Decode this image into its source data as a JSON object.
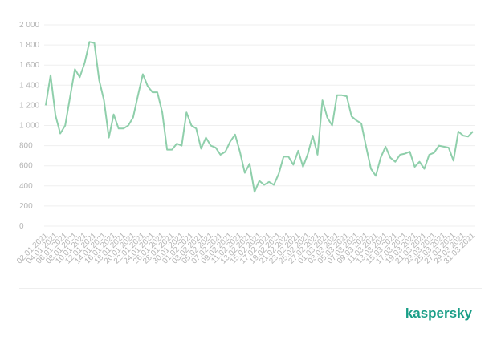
{
  "chart_data": {
    "type": "line",
    "categories": [
      "02.01.2021",
      null,
      "04.01.2021",
      null,
      "06.01.2021",
      null,
      "08.01.2021",
      null,
      "10.01.2021",
      null,
      "12.01.2021",
      null,
      "14.01.2021",
      null,
      "16.01.2021",
      null,
      "18.01.2021",
      null,
      "20.01.2021",
      null,
      "22.01.2021",
      null,
      "24.01.2021",
      null,
      "26.01.2021",
      null,
      "28.01.2021",
      null,
      "30.01.2021",
      null,
      "01.02.2021",
      null,
      "03.02.2021",
      null,
      "05.02.2021",
      null,
      "07.02.2021",
      null,
      "09.02.2021",
      null,
      "11.02.2021",
      null,
      "13.02.2021",
      null,
      "15.02.2021",
      null,
      "17.02.2021",
      null,
      "19.02.2021",
      null,
      "21.02.2021",
      null,
      "23.02.2021",
      null,
      "25.02.2021",
      null,
      "27.02.2021",
      null,
      "01.03.2021",
      null,
      "03.03.2021",
      null,
      "05.03.2021",
      null,
      "07.03.2021",
      null,
      "09.03.2021",
      null,
      "11.03.2021",
      null,
      "13.03.2021",
      null,
      "15.03.2021",
      null,
      "17.03.2021",
      null,
      "19.03.2021",
      null,
      "21.03.2021",
      null,
      "23.03.2021",
      null,
      "25.03.2021",
      null,
      "27.03.2021",
      null,
      "29.03.2021",
      null,
      "31.03.2021"
    ],
    "series": [
      {
        "name": null,
        "color": "#8fcfab",
        "values": [
          1200,
          1500,
          1100,
          920,
          1000,
          1280,
          1560,
          1480,
          1620,
          1830,
          1820,
          1450,
          1250,
          880,
          1110,
          970,
          970,
          1000,
          1080,
          1300,
          1510,
          1390,
          1330,
          1330,
          1130,
          760,
          760,
          820,
          800,
          1130,
          1000,
          970,
          770,
          880,
          800,
          780,
          710,
          740,
          840,
          910,
          740,
          530,
          620,
          340,
          450,
          410,
          440,
          410,
          520,
          690,
          690,
          610,
          750,
          590,
          720,
          900,
          710,
          1250,
          1080,
          1000,
          1300,
          1300,
          1290,
          1090,
          1050,
          1020,
          790,
          570,
          500,
          680,
          790,
          680,
          640,
          710,
          720,
          740,
          590,
          640,
          570,
          710,
          730,
          800,
          790,
          780,
          650,
          940,
          900,
          890,
          940
        ]
      }
    ],
    "ylim": [
      0,
      2000
    ],
    "yticks": [
      0,
      200,
      400,
      600,
      800,
      {
        "value": 1000,
        "label": "1 000"
      },
      {
        "value": 1200,
        "label": "1 200"
      },
      {
        "value": 1400,
        "label": "1 400"
      },
      {
        "value": 1600,
        "label": "1 600"
      },
      {
        "value": 1800,
        "label": "1 800"
      },
      {
        "value": 2000,
        "label": "2 000"
      }
    ],
    "grid": true,
    "logo": "kaspersky"
  }
}
